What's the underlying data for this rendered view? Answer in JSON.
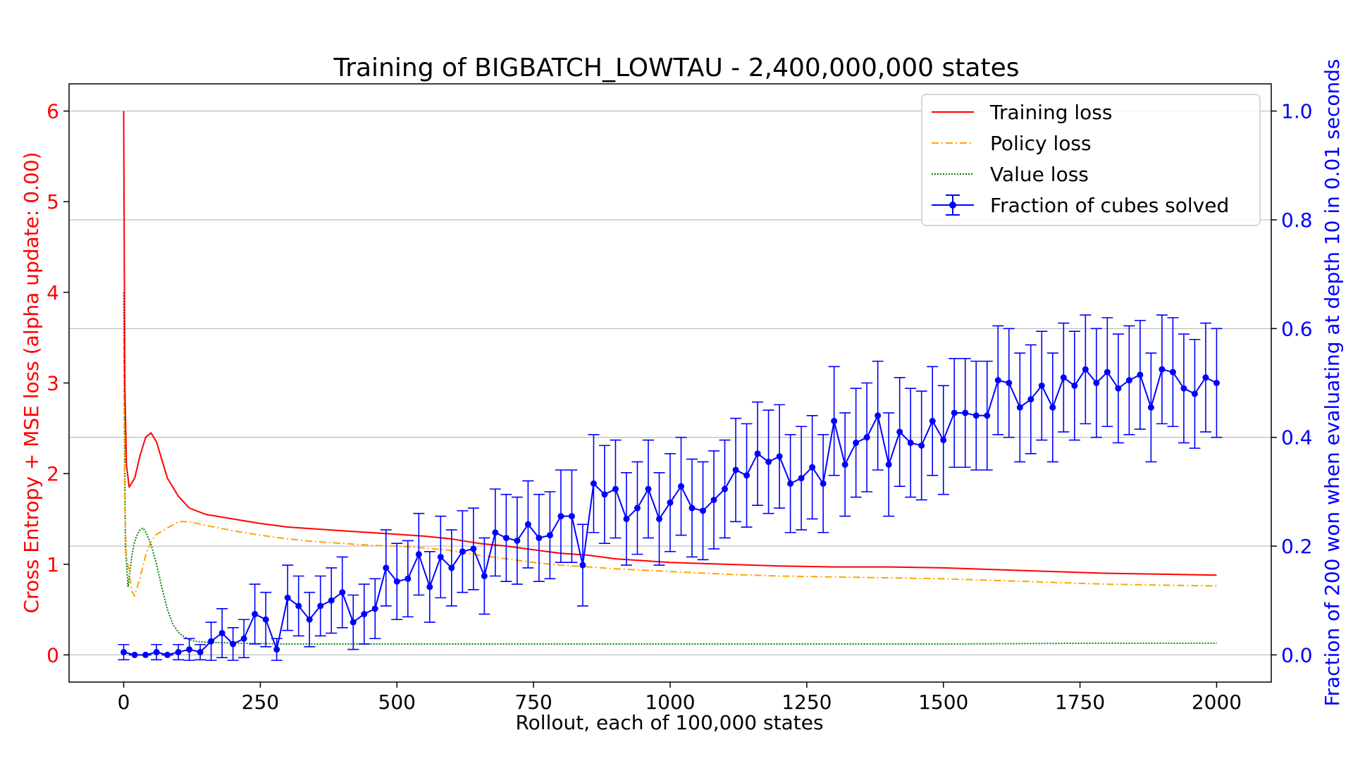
{
  "chart_data": {
    "type": "line",
    "title": "Training of BIGBATCH_LOWTAU - 2,400,000,000 states",
    "xlabel": "Rollout, each of 100,000 states",
    "ylabel_left": "Cross Entropy + MSE loss (alpha update: 0.00)",
    "ylabel_right": "Fraction of 200 won when evaluating at depth 10 in 0.01 seconds",
    "xlim": [
      -100,
      2100
    ],
    "ylim_left": [
      -0.3,
      6.3
    ],
    "ylim_right": [
      -0.05,
      1.05
    ],
    "xticks": [
      "0",
      "250",
      "500",
      "750",
      "1000",
      "1250",
      "1500",
      "1750",
      "2000"
    ],
    "yticks_left": [
      "0",
      "1",
      "2",
      "3",
      "4",
      "5",
      "6"
    ],
    "yticks_right": [
      "0.0",
      "0.2",
      "0.4",
      "0.6",
      "0.8",
      "1.0"
    ],
    "grid": "horizontal on right axis",
    "legend_position": "top-right",
    "colors": {
      "training_loss": "#ff0000",
      "policy_loss": "#ffa500",
      "value_loss": "#008000",
      "fraction_solved": "#0000ff",
      "left_axis": "#ff0000",
      "right_axis": "#0000ff"
    },
    "series": [
      {
        "name": "Training loss",
        "axis": "left",
        "style": "solid",
        "x": [
          0,
          2,
          5,
          10,
          20,
          30,
          40,
          50,
          60,
          70,
          80,
          100,
          120,
          150,
          200,
          250,
          300,
          350,
          400,
          450,
          500,
          550,
          600,
          650,
          700,
          750,
          800,
          850,
          900,
          1000,
          1100,
          1200,
          1300,
          1400,
          1500,
          1600,
          1700,
          1800,
          1900,
          2000
        ],
        "y": [
          6.0,
          3.0,
          2.1,
          1.85,
          1.95,
          2.2,
          2.4,
          2.45,
          2.35,
          2.15,
          1.95,
          1.75,
          1.62,
          1.55,
          1.5,
          1.45,
          1.41,
          1.39,
          1.37,
          1.35,
          1.33,
          1.31,
          1.28,
          1.23,
          1.2,
          1.16,
          1.12,
          1.1,
          1.06,
          1.02,
          1.0,
          0.98,
          0.97,
          0.97,
          0.96,
          0.94,
          0.92,
          0.9,
          0.89,
          0.88
        ]
      },
      {
        "name": "Policy loss",
        "axis": "left",
        "style": "dashdot",
        "x": [
          0,
          2,
          5,
          10,
          15,
          20,
          30,
          40,
          50,
          60,
          80,
          100,
          120,
          150,
          200,
          250,
          300,
          350,
          400,
          450,
          500,
          550,
          600,
          650,
          700,
          750,
          800,
          850,
          900,
          1000,
          1100,
          1200,
          1300,
          1400,
          1500,
          1600,
          1700,
          1800,
          1900,
          2000
        ],
        "y": [
          3.5,
          1.6,
          1.1,
          0.9,
          0.7,
          0.65,
          0.85,
          1.1,
          1.25,
          1.33,
          1.4,
          1.47,
          1.47,
          1.43,
          1.37,
          1.32,
          1.28,
          1.25,
          1.23,
          1.21,
          1.2,
          1.18,
          1.15,
          1.1,
          1.06,
          1.02,
          0.99,
          0.97,
          0.95,
          0.92,
          0.89,
          0.87,
          0.86,
          0.85,
          0.84,
          0.82,
          0.8,
          0.78,
          0.77,
          0.76
        ]
      },
      {
        "name": "Value loss",
        "axis": "left",
        "style": "dotted",
        "x": [
          0,
          3,
          8,
          15,
          20,
          25,
          30,
          35,
          40,
          50,
          60,
          70,
          80,
          90,
          100,
          110,
          120,
          130,
          150,
          200,
          300,
          500,
          800,
          1000,
          1300,
          1500,
          1800,
          2000
        ],
        "y": [
          4.0,
          1.2,
          0.75,
          1.1,
          1.25,
          1.33,
          1.38,
          1.4,
          1.36,
          1.22,
          1.0,
          0.74,
          0.5,
          0.34,
          0.25,
          0.2,
          0.17,
          0.15,
          0.14,
          0.13,
          0.12,
          0.12,
          0.12,
          0.12,
          0.12,
          0.12,
          0.13,
          0.13
        ]
      },
      {
        "name": "Fraction of cubes solved",
        "axis": "right",
        "style": "solid-marker-errorbar",
        "x": [
          0,
          20,
          40,
          60,
          80,
          100,
          120,
          140,
          160,
          180,
          200,
          220,
          240,
          260,
          280,
          300,
          320,
          340,
          360,
          380,
          400,
          420,
          440,
          460,
          480,
          500,
          520,
          540,
          560,
          580,
          600,
          620,
          640,
          660,
          680,
          700,
          720,
          740,
          760,
          780,
          800,
          820,
          840,
          860,
          880,
          900,
          920,
          940,
          960,
          980,
          1000,
          1020,
          1040,
          1060,
          1080,
          1100,
          1120,
          1140,
          1160,
          1180,
          1200,
          1220,
          1240,
          1260,
          1280,
          1300,
          1320,
          1340,
          1360,
          1380,
          1400,
          1420,
          1440,
          1460,
          1480,
          1500,
          1520,
          1540,
          1560,
          1580,
          1600,
          1620,
          1640,
          1660,
          1680,
          1700,
          1720,
          1740,
          1760,
          1780,
          1800,
          1820,
          1840,
          1860,
          1880,
          1900,
          1920,
          1940,
          1960,
          1980,
          2000
        ],
        "y": [
          0.005,
          0.0,
          0.0,
          0.005,
          0.0,
          0.005,
          0.01,
          0.005,
          0.025,
          0.04,
          0.02,
          0.03,
          0.075,
          0.065,
          0.01,
          0.105,
          0.09,
          0.065,
          0.09,
          0.1,
          0.115,
          0.06,
          0.075,
          0.085,
          0.16,
          0.135,
          0.14,
          0.185,
          0.125,
          0.18,
          0.16,
          0.19,
          0.195,
          0.145,
          0.225,
          0.215,
          0.21,
          0.24,
          0.215,
          0.22,
          0.255,
          0.255,
          0.165,
          0.315,
          0.295,
          0.305,
          0.25,
          0.27,
          0.305,
          0.25,
          0.28,
          0.31,
          0.27,
          0.265,
          0.285,
          0.305,
          0.34,
          0.33,
          0.37,
          0.355,
          0.365,
          0.315,
          0.325,
          0.345,
          0.315,
          0.43,
          0.35,
          0.39,
          0.4,
          0.44,
          0.35,
          0.41,
          0.39,
          0.385,
          0.43,
          0.395,
          0.445,
          0.445,
          0.44,
          0.44,
          0.505,
          0.5,
          0.455,
          0.47,
          0.495,
          0.455,
          0.51,
          0.495,
          0.525,
          0.5,
          0.52,
          0.49,
          0.505,
          0.515,
          0.455,
          0.525,
          0.52,
          0.49,
          0.48,
          0.51,
          0.5
        ],
        "err": [
          0.014,
          0.0,
          0.0,
          0.014,
          0.0,
          0.014,
          0.02,
          0.014,
          0.035,
          0.045,
          0.03,
          0.035,
          0.055,
          0.05,
          0.02,
          0.06,
          0.055,
          0.05,
          0.055,
          0.06,
          0.065,
          0.05,
          0.055,
          0.055,
          0.07,
          0.07,
          0.07,
          0.075,
          0.065,
          0.075,
          0.07,
          0.075,
          0.075,
          0.07,
          0.08,
          0.08,
          0.08,
          0.08,
          0.08,
          0.08,
          0.085,
          0.085,
          0.075,
          0.09,
          0.09,
          0.09,
          0.085,
          0.085,
          0.09,
          0.085,
          0.09,
          0.09,
          0.09,
          0.09,
          0.09,
          0.09,
          0.095,
          0.095,
          0.095,
          0.095,
          0.095,
          0.09,
          0.095,
          0.095,
          0.09,
          0.1,
          0.095,
          0.1,
          0.1,
          0.1,
          0.095,
          0.1,
          0.1,
          0.1,
          0.1,
          0.1,
          0.1,
          0.1,
          0.1,
          0.1,
          0.1,
          0.1,
          0.1,
          0.1,
          0.1,
          0.1,
          0.1,
          0.1,
          0.1,
          0.1,
          0.1,
          0.1,
          0.1,
          0.1,
          0.1,
          0.1,
          0.1,
          0.1,
          0.1,
          0.1,
          0.1
        ]
      }
    ]
  }
}
